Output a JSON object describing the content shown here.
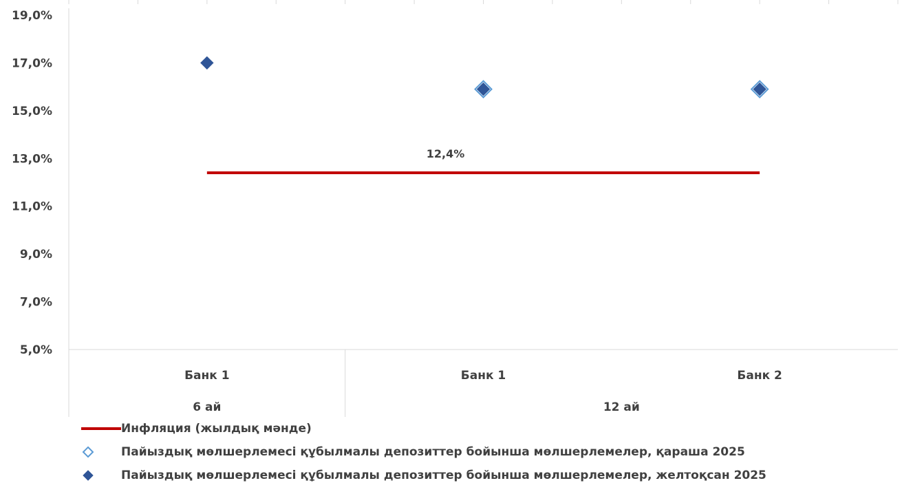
{
  "chart_data": {
    "type": "scatter",
    "y_ticks": [
      "5,0%",
      "7,0%",
      "9,0%",
      "11,0%",
      "13,0%",
      "15,0%",
      "17,0%",
      "19,0%"
    ],
    "ylim": [
      5,
      19
    ],
    "categories": [
      "Банк 1",
      "Банк 1",
      "Банк 2"
    ],
    "groups": [
      {
        "label": "6 ай",
        "span": [
          0,
          0
        ]
      },
      {
        "label": "12 ай",
        "span": [
          1,
          2
        ]
      }
    ],
    "series": [
      {
        "name": "Инфляция (жылдық мәнде)",
        "kind": "line",
        "color": "#C00000",
        "values": [
          12.4,
          12.4,
          12.4
        ],
        "data_label": "12,4%"
      },
      {
        "name": "Пайыздық мөлшерлемесі құбылмалы депозиттер бойынша мөлшерлемелер, қараша 2025",
        "kind": "marker-hollow",
        "color": "#5B9BD5",
        "values": [
          null,
          15.9,
          15.9
        ]
      },
      {
        "name": "Пайыздық мөлшерлемесі құбылмалы депозиттер бойынша мөлшерлемелер, желтоқсан 2025",
        "kind": "marker-filled",
        "color": "#2F5597",
        "values": [
          17.0,
          15.9,
          15.9
        ]
      }
    ],
    "grid": false,
    "legend_position": "bottom-left"
  }
}
